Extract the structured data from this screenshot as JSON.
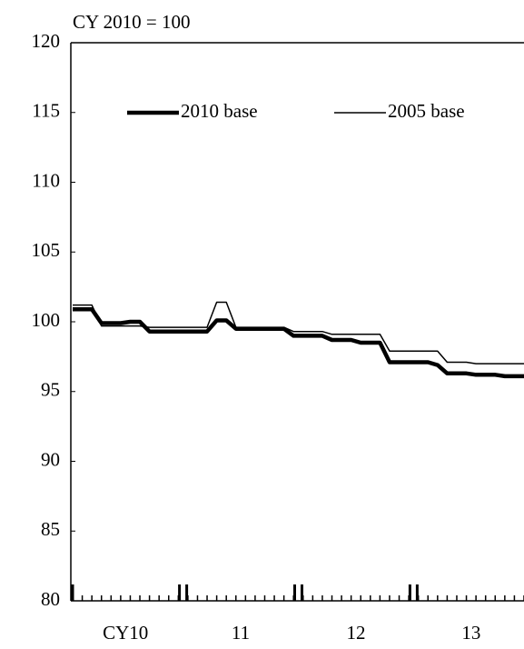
{
  "chart_data": {
    "type": "line",
    "title": "CY 2010 = 100",
    "categories": [
      null,
      null,
      null,
      null,
      null,
      null,
      null,
      null,
      null,
      null,
      null,
      null,
      null,
      null,
      null,
      null,
      null,
      null,
      null,
      null,
      null,
      null,
      null,
      null,
      null,
      null,
      null,
      null,
      null,
      null,
      null,
      null,
      null,
      null,
      null,
      null,
      null,
      null,
      null,
      null,
      null,
      null,
      null,
      null,
      null,
      null,
      null,
      null
    ],
    "x_group_labels": [
      "CY10",
      "11",
      "12",
      "13"
    ],
    "series": [
      {
        "name": "2010 base",
        "color": "#000000",
        "values": [
          100.9,
          100.9,
          100.9,
          99.9,
          99.9,
          99.9,
          100.0,
          100.0,
          99.3,
          99.3,
          99.3,
          99.3,
          99.3,
          99.3,
          99.3,
          100.1,
          100.1,
          99.5,
          99.5,
          99.5,
          99.5,
          99.5,
          99.5,
          99.0,
          99.0,
          99.0,
          99.0,
          98.7,
          98.7,
          98.7,
          98.5,
          98.5,
          98.5,
          97.1,
          97.1,
          97.1,
          97.1,
          97.1,
          96.9,
          96.3,
          96.3,
          96.3,
          96.2,
          96.2,
          96.2,
          96.1,
          96.1,
          96.1
        ]
      },
      {
        "name": "2005 base",
        "color": "#000000",
        "values": [
          101.2,
          101.2,
          101.2,
          99.7,
          99.7,
          99.7,
          99.7,
          99.7,
          99.6,
          99.6,
          99.6,
          99.6,
          99.6,
          99.6,
          99.6,
          101.4,
          101.4,
          99.6,
          99.6,
          99.6,
          99.6,
          99.6,
          99.6,
          99.3,
          99.3,
          99.3,
          99.3,
          99.1,
          99.1,
          99.1,
          99.1,
          99.1,
          99.1,
          97.9,
          97.9,
          97.9,
          97.9,
          97.9,
          97.9,
          97.1,
          97.1,
          97.1,
          97.0,
          97.0,
          97.0,
          97.0,
          97.0,
          97.0
        ]
      }
    ],
    "ylim": [
      80,
      120
    ],
    "yticks": [
      80,
      85,
      90,
      95,
      100,
      105,
      110,
      115,
      120
    ]
  }
}
